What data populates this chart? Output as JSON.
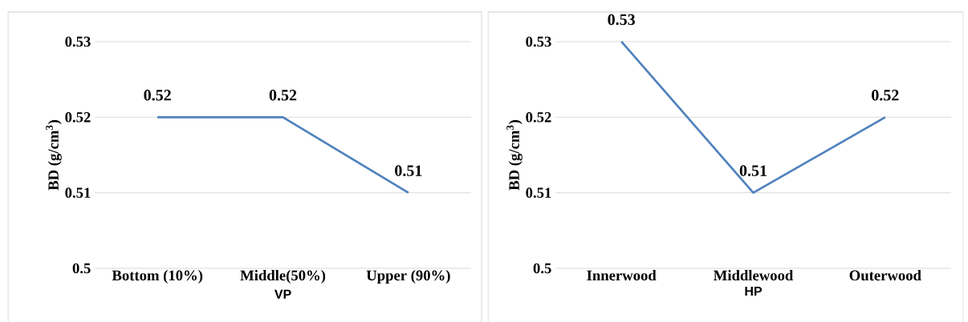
{
  "chart_data": [
    {
      "type": "line",
      "categories": [
        "Bottom (10%)",
        "Middle(50%)",
        "Upper (90%)"
      ],
      "values": [
        0.52,
        0.52,
        0.51
      ],
      "color": "#4f81bd",
      "xlabel": "VP",
      "ylabel": "BD (g/cm$^{3}$)",
      "ylim": [
        0.5,
        0.53
      ],
      "yticks": [
        0.5,
        0.51,
        0.52,
        0.53
      ],
      "grid": "y",
      "data_labels": true
    },
    {
      "type": "line",
      "categories": [
        "Innerwood",
        "Middlewood",
        "Outerwood"
      ],
      "values": [
        0.53,
        0.51,
        0.52
      ],
      "color": "#4f81bd",
      "xlabel": "HP",
      "ylabel": "BD (g/cm$^{3}$)",
      "ylim": [
        0.5,
        0.53
      ],
      "yticks": [
        0.5,
        0.51,
        0.52,
        0.53
      ],
      "grid": "y",
      "data_labels": true
    }
  ]
}
